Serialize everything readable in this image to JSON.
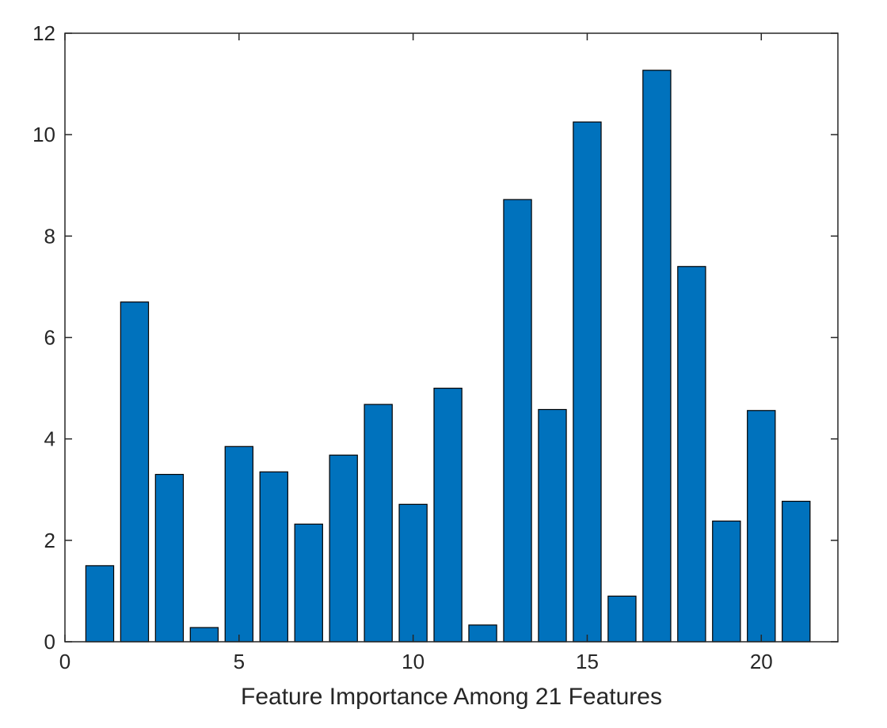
{
  "chart_data": {
    "type": "bar",
    "categories": [
      "1",
      "2",
      "3",
      "4",
      "5",
      "6",
      "7",
      "8",
      "9",
      "10",
      "11",
      "12",
      "13",
      "14",
      "15",
      "16",
      "17",
      "18",
      "19",
      "20",
      "21"
    ],
    "x": [
      1,
      2,
      3,
      4,
      5,
      6,
      7,
      8,
      9,
      10,
      11,
      12,
      13,
      14,
      15,
      16,
      17,
      18,
      19,
      20,
      21
    ],
    "values": [
      1.5,
      6.7,
      3.3,
      0.28,
      3.85,
      3.35,
      2.32,
      3.68,
      4.68,
      2.71,
      5.0,
      0.33,
      8.72,
      4.58,
      10.25,
      0.9,
      11.27,
      7.4,
      2.38,
      4.56,
      2.77
    ],
    "title": "",
    "xlabel": "Feature Importance Among 21 Features",
    "ylabel": "",
    "xlim": [
      0,
      22.2
    ],
    "ylim": [
      0,
      12
    ],
    "xticks": [
      0,
      5,
      10,
      15,
      20
    ],
    "yticks": [
      0,
      2,
      4,
      6,
      8,
      10,
      12
    ],
    "xtick_labels": [
      "0",
      "5",
      "10",
      "15",
      "20"
    ],
    "ytick_labels": [
      "0",
      "2",
      "4",
      "6",
      "8",
      "10",
      "12"
    ],
    "grid": false,
    "legend": "none",
    "colors": {
      "bar": "#0072BD",
      "edge": "#000000",
      "axis": "#262626"
    }
  }
}
